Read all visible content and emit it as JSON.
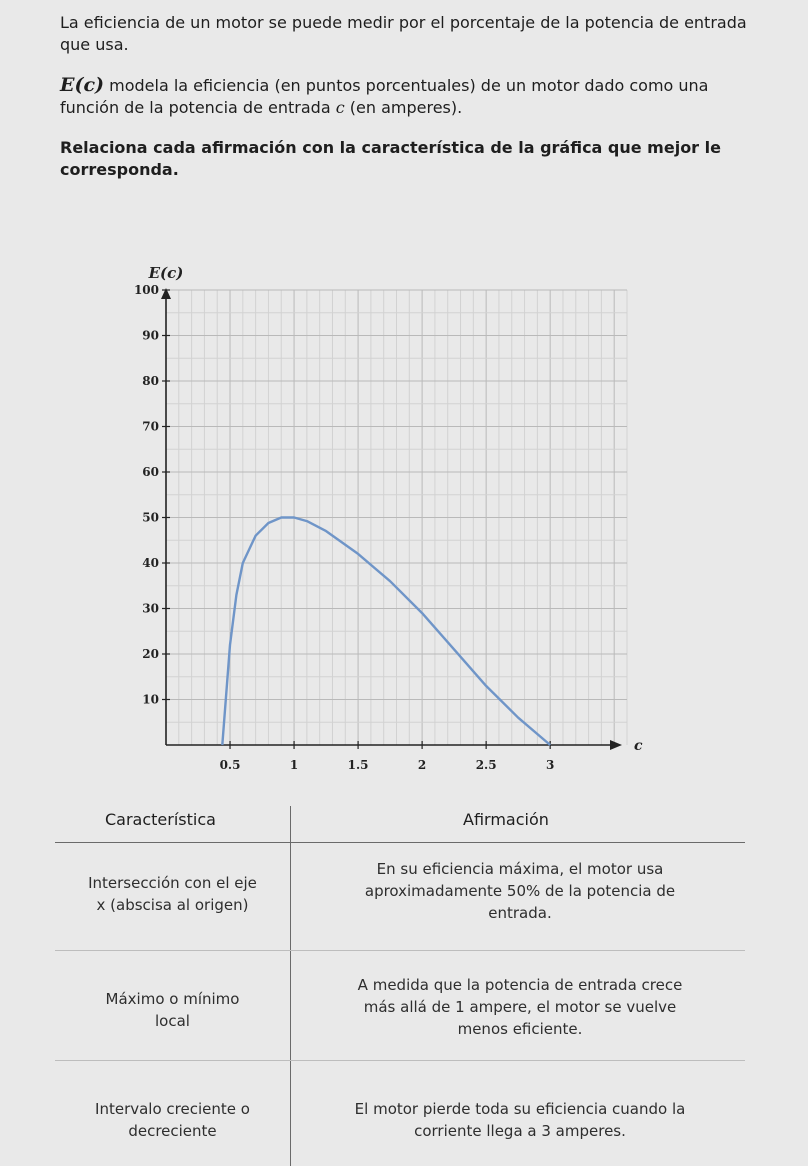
{
  "intro": {
    "line1": "La eficiencia de un motor se puede medir por el porcentaje de la potencia de entrada que usa.",
    "func": "E(c)",
    "line2": " modela la eficiencia (en puntos porcentuales) de un motor dado como una función de la potencia de entrada ",
    "var": "c",
    "line2_end": " (en amperes).",
    "instruction": "Relaciona cada afirmación con la característica de la gráfica que mejor le corresponda."
  },
  "chart_data": {
    "type": "line",
    "ylabel": "E(c)",
    "xlabel": "c",
    "xlim": [
      0,
      3.6
    ],
    "ylim": [
      0,
      100
    ],
    "x_ticks": [
      0.5,
      1,
      1.5,
      2,
      2.5,
      3
    ],
    "x_tick_labels": [
      "0.5",
      "1",
      "1.5",
      "2",
      "2.5",
      "3"
    ],
    "y_ticks": [
      10,
      20,
      30,
      40,
      50,
      60,
      70,
      80,
      90,
      100
    ],
    "y_tick_labels": [
      "10",
      "20",
      "30",
      "40",
      "50",
      "60",
      "70",
      "80",
      "90",
      "100"
    ],
    "grid": true,
    "series": [
      {
        "color": "#6f95c8",
        "x": [
          0.44,
          0.5,
          0.55,
          0.6,
          0.7,
          0.8,
          0.9,
          1.0,
          1.1,
          1.25,
          1.5,
          1.75,
          2.0,
          2.25,
          2.5,
          2.75,
          3.0
        ],
        "y": [
          0,
          22,
          33,
          40,
          46,
          48.8,
          50,
          50,
          49.2,
          47,
          42,
          36,
          29,
          21,
          13,
          6,
          0
        ]
      }
    ]
  },
  "table": {
    "headers": [
      "Característica",
      "Afirmación"
    ],
    "characteristics": [
      [
        "Intersección con el eje",
        "x (abscisa al origen)"
      ],
      [
        "Máximo o mínimo",
        "local"
      ],
      [
        "Intervalo creciente o",
        "decreciente"
      ]
    ],
    "statements": [
      [
        "En su eficiencia máxima, el motor usa",
        "aproximadamente 50% de la potencia de",
        "entrada."
      ],
      [
        "A medida que la potencia de entrada crece",
        "más allá de 1 ampere, el motor se vuelve",
        "menos eficiente."
      ],
      [
        "El motor pierde toda su eficiencia cuando la",
        "corriente llega a 3 amperes."
      ]
    ]
  }
}
